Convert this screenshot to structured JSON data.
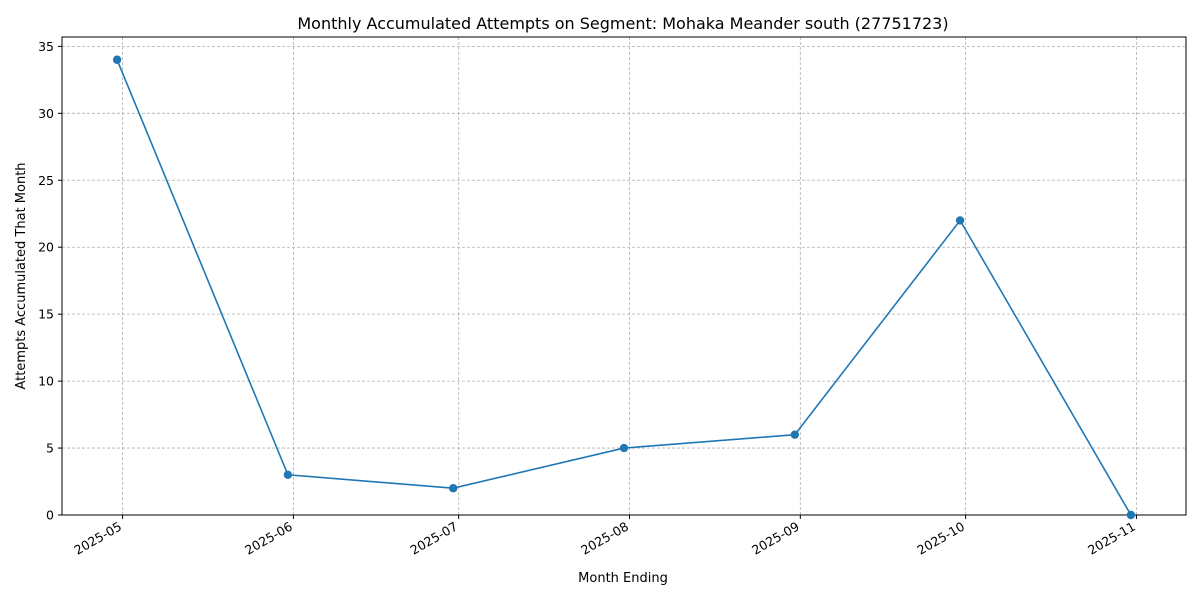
{
  "chart_data": {
    "type": "line",
    "title": "Monthly Accumulated Attempts on Segment: Mohaka Meander south (27751723)",
    "xlabel": "Month Ending",
    "ylabel": "Attempts Accumulated That Month",
    "x": [
      "2025-04-30",
      "2025-05-31",
      "2025-06-30",
      "2025-07-31",
      "2025-08-31",
      "2025-09-30",
      "2025-10-31"
    ],
    "values": [
      34,
      3,
      2,
      5,
      6,
      22,
      0
    ],
    "xticks": [
      "2025-05",
      "2025-06",
      "2025-07",
      "2025-08",
      "2025-09",
      "2025-10",
      "2025-11"
    ],
    "xtick_dates": [
      "2025-05-01",
      "2025-06-01",
      "2025-07-01",
      "2025-08-01",
      "2025-09-01",
      "2025-10-01",
      "2025-11-01"
    ],
    "yticks": [
      0,
      5,
      10,
      15,
      20,
      25,
      30,
      35
    ],
    "ylim": [
      0,
      35.7
    ],
    "xlim": [
      "2025-04-20",
      "2025-11-10"
    ],
    "grid": true,
    "markers": true,
    "line_color": "#1f77b4"
  }
}
